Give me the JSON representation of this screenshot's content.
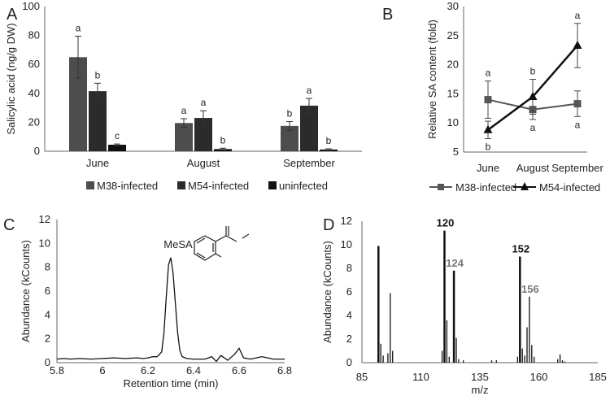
{
  "chart_data": [
    {
      "panel": "A",
      "type": "bar",
      "ylabel": "Salicylic acid (ng/g DW)",
      "ylim": [
        0,
        100
      ],
      "yticks": [
        0,
        20,
        40,
        60,
        80,
        100
      ],
      "categories": [
        "June",
        "August",
        "September"
      ],
      "series": [
        {
          "name": "M38-infected",
          "color": "#4d4d4d",
          "values": [
            65,
            19.5,
            17.5
          ],
          "errors": [
            14.5,
            3,
            3
          ],
          "letters": [
            "a",
            "a",
            "b"
          ]
        },
        {
          "name": "M54-infected",
          "color": "#2b2b2b",
          "values": [
            41.5,
            23,
            31.5
          ],
          "errors": [
            5.5,
            5,
            5
          ],
          "letters": [
            "b",
            "a",
            "a"
          ]
        },
        {
          "name": "uninfected",
          "color": "#111111",
          "values": [
            4.5,
            1.5,
            1.2
          ],
          "errors": [
            0.5,
            0.6,
            0.5
          ],
          "letters": [
            "c",
            "b",
            "b"
          ]
        }
      ],
      "legend_position": "bottom"
    },
    {
      "panel": "B",
      "type": "line",
      "ylabel": "Relative SA content (fold)",
      "ylim": [
        5,
        30
      ],
      "yticks": [
        5,
        10,
        15,
        20,
        25,
        30
      ],
      "categories": [
        "June",
        "August",
        "September"
      ],
      "series": [
        {
          "name": "M38-infected",
          "color": "#555555",
          "marker": "square",
          "values": [
            14,
            12.3,
            13.3
          ],
          "errors": [
            3.2,
            1.7,
            2.2
          ],
          "letters": [
            "a",
            "a",
            "a"
          ],
          "letter_side": [
            "above",
            "below",
            "below"
          ]
        },
        {
          "name": "M54-infected",
          "color": "#111111",
          "marker": "triangle",
          "values": [
            8.8,
            14.5,
            23.3
          ],
          "errors": [
            1.5,
            3,
            3.8
          ],
          "letters": [
            "b",
            "b",
            "a"
          ],
          "letter_side": [
            "below",
            "above",
            "above"
          ]
        }
      ],
      "legend_position": "bottom"
    },
    {
      "panel": "C",
      "type": "line",
      "xlabel": "Retention time (min)",
      "ylabel": "Abundance (kCounts)",
      "xlim": [
        5.8,
        6.8
      ],
      "ylim": [
        0,
        12
      ],
      "xticks": [
        "5.8",
        "6",
        "6.2",
        "6.4",
        "6.6",
        "6.8"
      ],
      "yticks": [
        0,
        2,
        4,
        6,
        8,
        10,
        12
      ],
      "annotation": "MeSA",
      "x": [
        5.8,
        5.83,
        5.86,
        5.9,
        5.95,
        6.0,
        6.05,
        6.1,
        6.15,
        6.18,
        6.2,
        6.22,
        6.24,
        6.26,
        6.27,
        6.28,
        6.29,
        6.3,
        6.31,
        6.32,
        6.33,
        6.34,
        6.35,
        6.37,
        6.4,
        6.45,
        6.48,
        6.5,
        6.52,
        6.55,
        6.58,
        6.6,
        6.62,
        6.65,
        6.7,
        6.75,
        6.8
      ],
      "y": [
        0.3,
        0.35,
        0.3,
        0.35,
        0.3,
        0.35,
        0.4,
        0.35,
        0.4,
        0.35,
        0.4,
        0.5,
        0.5,
        0.9,
        2.5,
        5.5,
        8.2,
        8.8,
        7.5,
        5.0,
        2.5,
        1.0,
        0.5,
        0.35,
        0.3,
        0.3,
        0.5,
        0.1,
        0.6,
        0.2,
        0.7,
        1.2,
        0.4,
        0.3,
        0.5,
        0.3,
        0.3
      ]
    },
    {
      "panel": "D",
      "type": "bar",
      "xlabel": "m/z",
      "ylabel": "Abundance (kCounts)",
      "xlim": [
        85,
        185
      ],
      "ylim": [
        0,
        12
      ],
      "xticks": [
        85,
        110,
        135,
        160,
        185
      ],
      "yticks": [
        0,
        2,
        4,
        6,
        8,
        10,
        12
      ],
      "x": [
        92,
        93,
        94,
        96,
        97,
        98,
        119,
        120,
        121,
        122,
        124,
        125,
        126,
        128,
        140,
        142,
        151,
        152,
        153,
        154,
        155,
        156,
        157,
        158,
        168,
        169,
        170,
        171
      ],
      "y": [
        9.9,
        1.6,
        0.6,
        0.8,
        5.9,
        1.0,
        1.0,
        11.2,
        3.6,
        0.5,
        7.8,
        2.1,
        0.3,
        0.2,
        0.2,
        0.2,
        0.5,
        9.0,
        1.2,
        0.6,
        3.0,
        5.6,
        1.5,
        0.5,
        0.3,
        0.7,
        0.2,
        0.1
      ],
      "peak_labels": [
        "120",
        "124",
        "152",
        "156"
      ],
      "peak_label_x": [
        120,
        124,
        152,
        156
      ],
      "peak_label_y": [
        11.2,
        7.8,
        9.0,
        5.6
      ],
      "peak_label_colors": [
        "#111111",
        "#777777",
        "#111111",
        "#777777"
      ]
    }
  ],
  "panel_letters": [
    "A",
    "B",
    "C",
    "D"
  ]
}
